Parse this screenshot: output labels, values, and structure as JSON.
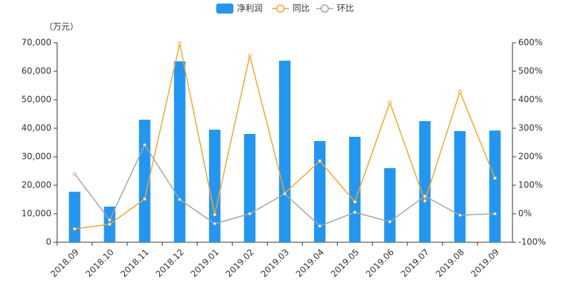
{
  "chart_data": {
    "type": "bar-line",
    "unit_label": "（万元）",
    "categories": [
      "2018.09",
      "2018.10",
      "2018.11",
      "2018.12",
      "2019.01",
      "2019.02",
      "2019.03",
      "2019.04",
      "2019.05",
      "2019.06",
      "2019.07",
      "2019.08",
      "2019.09"
    ],
    "series": [
      {
        "name": "净利润",
        "type": "bar",
        "color": "#2196f3",
        "values": [
          17700,
          12500,
          43000,
          63500,
          39500,
          38000,
          63700,
          35500,
          37000,
          26000,
          42500,
          39000,
          39200
        ]
      },
      {
        "name": "同比",
        "type": "line",
        "axis": "y2",
        "color": "#f5a623",
        "values": [
          -53,
          -37,
          52,
          597,
          -3,
          555,
          72,
          185,
          42,
          390,
          45,
          428,
          125
        ]
      },
      {
        "name": "环比",
        "type": "line",
        "axis": "y2",
        "color": "#a5a5a5",
        "values": [
          140,
          -22,
          242,
          50,
          -35,
          0,
          70,
          -43,
          5,
          -28,
          62,
          -5,
          0
        ]
      }
    ],
    "ylim": [
      0,
      70000
    ],
    "yticks": [
      0,
      {
        "value": 10000,
        "label": "10,000"
      },
      {
        "value": 20000,
        "label": "20,000"
      },
      {
        "value": 30000,
        "label": "30,000"
      },
      {
        "value": 40000,
        "label": "40,000"
      },
      {
        "value": 50000,
        "label": "50,000"
      },
      {
        "value": 60000,
        "label": "60,000"
      },
      {
        "value": 70000,
        "label": "70,000"
      }
    ],
    "y2lim": [
      -100,
      600
    ],
    "y2ticks": [
      {
        "value": -100,
        "label": "-100%"
      },
      {
        "value": 0,
        "label": "0%"
      },
      {
        "value": 100,
        "label": "100%"
      },
      {
        "value": 200,
        "label": "200%"
      },
      {
        "value": 300,
        "label": "300%"
      },
      {
        "value": 400,
        "label": "400%"
      },
      {
        "value": 500,
        "label": "500%"
      },
      {
        "value": 600,
        "label": "600%"
      }
    ],
    "legend": "top"
  }
}
